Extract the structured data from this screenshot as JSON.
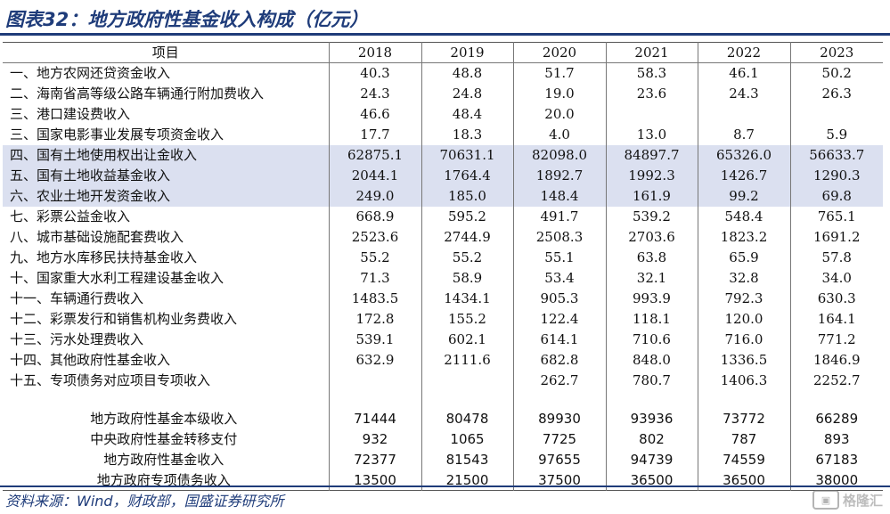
{
  "title": "图表32：地方政府性基金收入构成（亿元）",
  "header": {
    "item_label": "项目",
    "years": [
      "2018",
      "2019",
      "2020",
      "2021",
      "2022",
      "2023"
    ]
  },
  "rows": [
    {
      "label": "一、地方农网还贷资金收入",
      "values": [
        "40.3",
        "48.8",
        "51.7",
        "58.3",
        "46.1",
        "50.2"
      ],
      "highlight": false
    },
    {
      "label": "二、海南省高等级公路车辆通行附加费收入",
      "values": [
        "24.3",
        "24.8",
        "19.0",
        "23.6",
        "24.3",
        "26.3"
      ],
      "highlight": false
    },
    {
      "label": "三、港口建设费收入",
      "values": [
        "46.6",
        "48.4",
        "20.0",
        "",
        "",
        ""
      ],
      "highlight": false
    },
    {
      "label": "三、国家电影事业发展专项资金收入",
      "values": [
        "17.7",
        "18.3",
        "4.0",
        "13.0",
        "8.7",
        "5.9"
      ],
      "highlight": false
    },
    {
      "label": "四、国有土地使用权出让金收入",
      "values": [
        "62875.1",
        "70631.1",
        "82098.0",
        "84897.7",
        "65326.0",
        "56633.7"
      ],
      "highlight": true
    },
    {
      "label": "五、国有土地收益基金收入",
      "values": [
        "2044.1",
        "1764.4",
        "1892.7",
        "1992.3",
        "1426.7",
        "1290.3"
      ],
      "highlight": true
    },
    {
      "label": "六、农业土地开发资金收入",
      "values": [
        "249.0",
        "185.0",
        "148.4",
        "161.9",
        "99.2",
        "69.8"
      ],
      "highlight": true
    },
    {
      "label": "七、彩票公益金收入",
      "values": [
        "668.9",
        "595.2",
        "491.7",
        "539.2",
        "548.4",
        "765.1"
      ],
      "highlight": false
    },
    {
      "label": "八、城市基础设施配套费收入",
      "values": [
        "2523.6",
        "2744.9",
        "2508.3",
        "2703.6",
        "1823.2",
        "1691.2"
      ],
      "highlight": false
    },
    {
      "label": "九、地方水库移民扶持基金收入",
      "values": [
        "55.2",
        "55.2",
        "55.1",
        "63.8",
        "65.9",
        "57.8"
      ],
      "highlight": false
    },
    {
      "label": "十、国家重大水利工程建设基金收入",
      "values": [
        "71.3",
        "58.9",
        "53.4",
        "32.1",
        "32.8",
        "34.0"
      ],
      "highlight": false
    },
    {
      "label": "十一、车辆通行费收入",
      "values": [
        "1483.5",
        "1434.1",
        "905.3",
        "993.9",
        "792.3",
        "630.3"
      ],
      "highlight": false
    },
    {
      "label": "十二、彩票发行和销售机构业务费收入",
      "values": [
        "172.8",
        "155.2",
        "122.4",
        "118.1",
        "120.0",
        "164.1"
      ],
      "highlight": false
    },
    {
      "label": "十三、污水处理费收入",
      "values": [
        "539.1",
        "602.1",
        "614.1",
        "710.6",
        "716.0",
        "771.2"
      ],
      "highlight": false
    },
    {
      "label": "十四、其他政府性基金收入",
      "values": [
        "632.9",
        "2111.6",
        "682.8",
        "848.0",
        "1336.5",
        "1846.9"
      ],
      "highlight": false
    },
    {
      "label": "十五、专项债务对应项目专项收入",
      "values": [
        "",
        "",
        "262.7",
        "780.7",
        "1406.3",
        "2252.7"
      ],
      "highlight": false
    }
  ],
  "summary_rows": [
    {
      "label": "地方政府性基金本级收入",
      "values": [
        "71444",
        "80478",
        "89930",
        "93936",
        "73772",
        "66289"
      ]
    },
    {
      "label": "中央政府性基金转移支付",
      "values": [
        "932",
        "1065",
        "7725",
        "802",
        "787",
        "893"
      ]
    },
    {
      "label": "地方政府性基金收入",
      "values": [
        "72377",
        "81543",
        "97655",
        "94739",
        "74559",
        "67183"
      ]
    },
    {
      "label": "地方政府专项债务收入",
      "values": [
        "13500",
        "21500",
        "37500",
        "36500",
        "36500",
        "38000"
      ]
    }
  ],
  "source": "资料来源：Wind，财政部，国盛证券研究所",
  "watermark": {
    "text": "格隆汇",
    "icon": "gelonghui-logo-icon"
  },
  "colors": {
    "accent": "#1f3c7a",
    "highlight": "#dbe0f0"
  }
}
